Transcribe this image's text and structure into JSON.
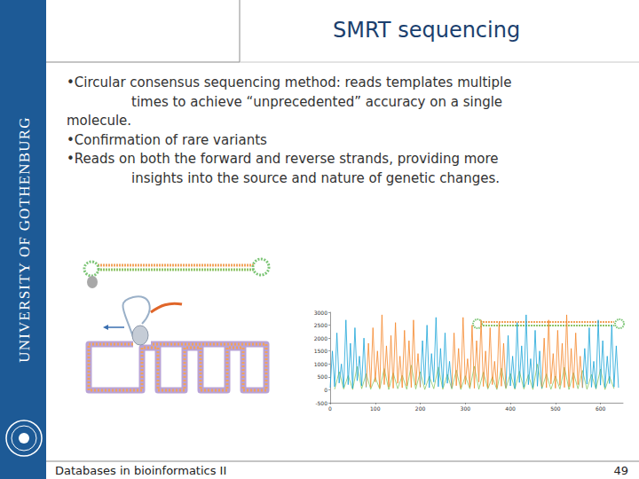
{
  "header": {
    "title": "SMRT sequencing"
  },
  "sidebar": "UNIVERSITY OF GOTHENBURG",
  "bullets": [
    [
      "•Circular consensus sequencing method: reads templates multiple",
      "times to achieve “unprecedented” accuracy on a single",
      "molecule."
    ],
    [
      "•Confirmation of rare variants"
    ],
    [
      "•Reads on both the forward and reverse strands, providing more",
      "insights into the source and nature of genetic changes."
    ]
  ],
  "footer": {
    "left": "Databases in bioinformatics II",
    "page": 49
  },
  "chart_data": {
    "type": "line",
    "xlim": [
      0,
      650
    ],
    "xticks": [
      0,
      100,
      200,
      300,
      400,
      500,
      600
    ],
    "ylim": [
      -500,
      3000
    ],
    "yticks": [
      -500,
      0,
      500,
      1000,
      1500,
      2000,
      2500,
      3000
    ],
    "grid": false,
    "series": [
      {
        "color": "#8cc863",
        "x": [
          10,
          20,
          30,
          40,
          50,
          60,
          70,
          80,
          90,
          100,
          110,
          120,
          130,
          140,
          150,
          160,
          170,
          180,
          190,
          200,
          210,
          220,
          230,
          240,
          250,
          260,
          270,
          280,
          290,
          300,
          310,
          320,
          330,
          340,
          350,
          360,
          370,
          380,
          390,
          400,
          410,
          420,
          430,
          440,
          450,
          460,
          470,
          480,
          490,
          500,
          510,
          520,
          530,
          540,
          550,
          560,
          570,
          580,
          590,
          600,
          610,
          620,
          630
        ],
        "values": [
          20,
          700,
          30,
          550,
          10,
          900,
          40,
          620,
          20,
          480,
          30,
          820,
          10,
          650,
          40,
          560,
          20,
          950,
          30,
          700,
          10,
          520,
          40,
          880,
          20,
          600,
          30,
          760,
          10,
          540,
          40,
          910,
          20,
          680,
          30,
          500,
          10,
          840,
          40,
          630,
          20,
          720,
          30,
          580,
          10,
          990,
          40,
          610,
          20,
          530,
          30,
          870,
          10,
          660,
          40,
          750,
          20,
          590,
          30,
          800,
          10,
          520,
          40
        ]
      },
      {
        "color": "#1ba5d8",
        "x": [
          0,
          5,
          10,
          15,
          20,
          25,
          30,
          35,
          40,
          45,
          50,
          55,
          60,
          65,
          70,
          75,
          80,
          82,
          200,
          205,
          210,
          215,
          220,
          225,
          230,
          235,
          240,
          245,
          250,
          255,
          260,
          265,
          270,
          272,
          390,
          395,
          400,
          405,
          410,
          415,
          420,
          425,
          430,
          435,
          440,
          445,
          450,
          455,
          460,
          465,
          470,
          472,
          560,
          565,
          570,
          575,
          580,
          585,
          590,
          595,
          600,
          605,
          610,
          615,
          620,
          625,
          630,
          635,
          640
        ],
        "values": [
          80,
          1500,
          120,
          2200,
          260,
          1000,
          90,
          2700,
          200,
          1800,
          60,
          2400,
          350,
          1300,
          150,
          2000,
          90,
          null,
          100,
          1900,
          200,
          2500,
          80,
          1400,
          300,
          2800,
          120,
          1600,
          90,
          2200,
          250,
          1100,
          70,
          null,
          90,
          2100,
          150,
          1300,
          60,
          2600,
          280,
          1700,
          100,
          2900,
          200,
          1200,
          80,
          2300,
          140,
          1500,
          60,
          null,
          70,
          1600,
          220,
          2400,
          100,
          1100,
          60,
          2700,
          180,
          1900,
          90,
          1300,
          240,
          2500,
          110,
          1700,
          80
        ]
      },
      {
        "color": "#f5862a",
        "x": [
          80,
          85,
          90,
          95,
          100,
          105,
          110,
          115,
          120,
          125,
          130,
          135,
          140,
          145,
          150,
          155,
          160,
          165,
          170,
          175,
          180,
          185,
          190,
          195,
          200,
          202,
          270,
          275,
          280,
          285,
          290,
          295,
          300,
          305,
          310,
          315,
          320,
          325,
          330,
          335,
          340,
          345,
          350,
          355,
          360,
          365,
          370,
          375,
          380,
          385,
          390,
          392,
          470,
          475,
          480,
          485,
          490,
          495,
          500,
          505,
          510,
          515,
          520,
          525,
          530,
          535,
          540,
          545,
          550,
          555,
          560
        ],
        "values": [
          120,
          1800,
          90,
          2400,
          300,
          1500,
          70,
          2900,
          200,
          1700,
          110,
          2100,
          60,
          2600,
          250,
          1300,
          80,
          2300,
          150,
          1900,
          90,
          2700,
          180,
          1400,
          100,
          null,
          90,
          2200,
          160,
          1600,
          70,
          2800,
          210,
          1200,
          100,
          2500,
          60,
          1900,
          300,
          2700,
          130,
          1500,
          80,
          2400,
          200,
          1100,
          70,
          2600,
          140,
          1800,
          90,
          null,
          110,
          2000,
          80,
          2700,
          230,
          1400,
          60,
          2300,
          170,
          1800,
          90,
          2900,
          120,
          1600,
          70,
          2200,
          200,
          1300,
          80
        ]
      }
    ]
  }
}
